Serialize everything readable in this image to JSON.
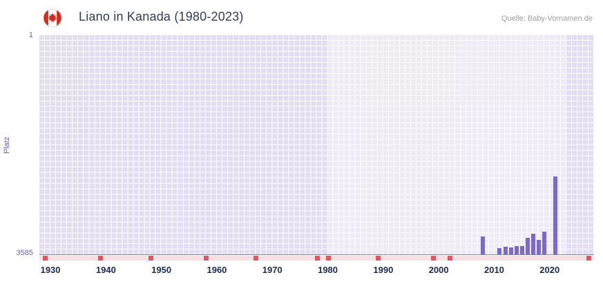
{
  "header": {
    "title": "Liano in Kanada (1980-2023)",
    "source": "Quelle: Baby-Vornamen.de",
    "flag_icon": "canada-flag-icon"
  },
  "colors": {
    "bar": "#7b6bc4",
    "plot_bg": "#e2ddf0",
    "band_overlay": "rgba(255,255,255,0.42)",
    "grid": "#ffffff",
    "axis_purple": "#6a5db8",
    "tick_label": "#1d2a4d",
    "title": "#303c56",
    "source": "#9c9ca4",
    "marker_red": "#e25663",
    "marker_strip": "#f7dfe4",
    "flag_red": "#d52b1e"
  },
  "chart_data": {
    "type": "bar",
    "title": "Liano in Kanada (1980-2023)",
    "xlabel": "",
    "ylabel": "Platz",
    "y_axis": {
      "top_label": "1",
      "bottom_label": "3585",
      "min": 1,
      "max": 3585,
      "inverted": true
    },
    "x_axis": {
      "min": 1928,
      "max": 2028,
      "ticks": [
        1930,
        1940,
        1950,
        1960,
        1970,
        1980,
        1990,
        2000,
        2010,
        2020
      ]
    },
    "highlight_band": {
      "from": 1980,
      "to": 2023
    },
    "grid": true,
    "legend": false,
    "series": [
      {
        "name": "Platz",
        "points": [
          {
            "year": 2008,
            "rank": 3293
          },
          {
            "year": 2011,
            "rank": 3478
          },
          {
            "year": 2012,
            "rank": 3465
          },
          {
            "year": 2013,
            "rank": 3472
          },
          {
            "year": 2014,
            "rank": 3455
          },
          {
            "year": 2015,
            "rank": 3448
          },
          {
            "year": 2016,
            "rank": 3315
          },
          {
            "year": 2017,
            "rank": 3248
          },
          {
            "year": 2018,
            "rank": 3349
          },
          {
            "year": 2019,
            "rank": 3214
          },
          {
            "year": 2021,
            "rank": 2315
          }
        ]
      }
    ],
    "red_marker_years": [
      1929,
      1939,
      1948,
      1958,
      1967,
      1978,
      1980,
      1989,
      1999,
      2002,
      2027
    ]
  }
}
